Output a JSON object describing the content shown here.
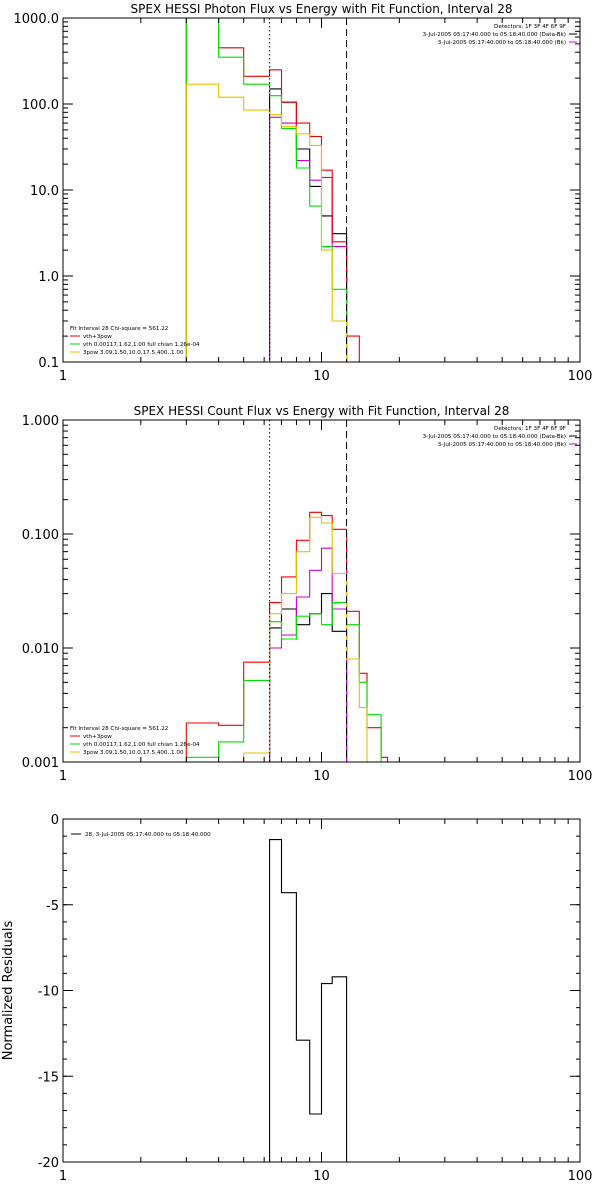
{
  "chart_data": [
    {
      "type": "line",
      "title": "SPEX HESSI Photon Flux vs Energy with Fit Function, Interval 28",
      "xlabel": "",
      "ylabel": "",
      "xscale": "log",
      "yscale": "log",
      "xlim": [
        1,
        100
      ],
      "ylim": [
        0.1,
        1000
      ],
      "xticks": [
        1,
        10,
        100
      ],
      "xtick_labels": [
        "1",
        "10",
        "100"
      ],
      "yticks": [
        0.1,
        1,
        10,
        100,
        1000
      ],
      "ytick_labels": [
        "0.1",
        "1.0",
        "10.0",
        "100.0",
        "1000.0"
      ],
      "legend_position": "top-right",
      "legend_lines": [
        {
          "text": "Detectors: 1F 3F 4F 6F 9F",
          "color": ""
        },
        {
          "text": "3-Jul-2005 05:17:40.000 to 05:18:40.000 (Data-Bk)",
          "color": "#000000"
        },
        {
          "text": "3-Jul-2005 05:17:40.000 to 05:18:40.000 (Bk)",
          "color": "#cc00cc"
        }
      ],
      "fit_info": [
        {
          "text": "Fit Interval 28   Chi-square = 561.22",
          "color": ""
        },
        {
          "text": "vth+3pow",
          "color": "#ee0000"
        },
        {
          "text": "vth 0.00117,1.62,1.00  full chian 1.26e-04",
          "color": "#00dd00"
        },
        {
          "text": "3pow 3.09,1.50,10.0,17.5,400.,1.00",
          "color": "#e6c000"
        }
      ],
      "markers": [
        6.3,
        12.5
      ],
      "series": [
        {
          "name": "3-Jul-2005 05:17:40.000 to 05:18:40.000 (Data-Bk)",
          "color": "#000000",
          "edges": [
            6.3,
            7,
            8,
            9,
            10,
            11,
            12.5
          ],
          "values": [
            150,
            105,
            30,
            11,
            5,
            3.1
          ]
        },
        {
          "name": "3-Jul-2005 05:17:40.000 to 05:18:40.000 (Bk)",
          "color": "#cc00cc",
          "edges": [
            6.3,
            7,
            8,
            9,
            10,
            11,
            12.5
          ],
          "values": [
            70,
            60,
            22,
            13,
            14,
            2.2
          ]
        },
        {
          "name": "vth+3pow",
          "color": "#ee0000",
          "edges": [
            3,
            4,
            5,
            6.3,
            7,
            8,
            9,
            10,
            11,
            12.5,
            14,
            15
          ],
          "values": [
            1000,
            450,
            210,
            250,
            105,
            60,
            42,
            17,
            2.5,
            0.2,
            0.1
          ]
        },
        {
          "name": "vth",
          "color": "#00dd00",
          "edges": [
            3,
            4,
            5,
            6.3,
            7,
            8,
            9,
            10,
            11,
            12.5
          ],
          "values": [
            1000,
            350,
            170,
            125,
            52,
            18,
            6.5,
            2.2,
            0.7
          ]
        },
        {
          "name": "3pow",
          "color": "#e6c000",
          "edges": [
            3,
            4,
            5,
            6.3,
            7,
            8,
            9,
            10,
            11,
            12.5
          ],
          "values": [
            170,
            120,
            85,
            75,
            55,
            45,
            33,
            2,
            0.3
          ]
        }
      ]
    },
    {
      "type": "line",
      "title": "SPEX HESSI Count Flux vs Energy with Fit Function, Interval 28",
      "xlabel": "",
      "ylabel": "",
      "xscale": "log",
      "yscale": "log",
      "xlim": [
        1,
        100
      ],
      "ylim": [
        0.001,
        1
      ],
      "xticks": [
        1,
        10,
        100
      ],
      "xtick_labels": [
        "1",
        "10",
        "100"
      ],
      "yticks": [
        0.001,
        0.01,
        0.1,
        1
      ],
      "ytick_labels": [
        "0.001",
        "0.010",
        "0.100",
        "1.000"
      ],
      "legend_position": "top-right",
      "legend_lines": [
        {
          "text": "Detectors: 1F 3F 4F 6F 9F",
          "color": ""
        },
        {
          "text": "3-Jul-2005 05:17:40.000 to 05:18:40.000 (Data-Bk)",
          "color": "#000000"
        },
        {
          "text": "3-Jul-2005 05:17:40.000 to 05:18:40.000 (Bk)",
          "color": "#cc00cc"
        }
      ],
      "fit_info": [
        {
          "text": "Fit Interval 28   Chi-square = 561.22",
          "color": ""
        },
        {
          "text": "vth+3pow",
          "color": "#ee0000"
        },
        {
          "text": "vth 0.00117,1.62,1.00  full chian 1.26e-04",
          "color": "#00dd00"
        },
        {
          "text": "3pow 3.09,1.50,10.0,17.5,400.,1.00",
          "color": "#e6c000"
        }
      ],
      "markers": [
        6.3,
        12.5
      ],
      "series": [
        {
          "name": "3-Jul-2005 05:17:40.000 to 05:18:40.000 (Data-Bk)",
          "color": "#000000",
          "edges": [
            6.3,
            7,
            8,
            9,
            10,
            11,
            12.5
          ],
          "values": [
            0.015,
            0.022,
            0.016,
            0.02,
            0.03,
            0.014
          ]
        },
        {
          "name": "3-Jul-2005 05:17:40.000 to 05:18:40.000 (Bk)",
          "color": "#cc00cc",
          "edges": [
            6.3,
            7,
            8,
            9,
            10,
            11,
            12.5
          ],
          "values": [
            0.01,
            0.013,
            0.028,
            0.048,
            0.075,
            0.022
          ]
        },
        {
          "name": "vth+3pow",
          "color": "#ee0000",
          "edges": [
            3,
            4,
            5,
            6.3,
            7,
            8,
            9,
            10,
            11,
            12.5,
            14,
            15,
            17,
            18
          ],
          "values": [
            0.0022,
            0.0021,
            0.0075,
            0.025,
            0.042,
            0.088,
            0.155,
            0.145,
            0.11,
            0.021,
            0.006,
            0.002,
            0.0011
          ]
        },
        {
          "name": "vth",
          "color": "#00dd00",
          "edges": [
            3,
            4,
            5,
            6.3,
            7,
            8,
            9,
            10,
            11,
            12.5,
            14,
            15,
            17
          ],
          "values": [
            0.0011,
            0.0015,
            0.0052,
            0.017,
            0.012,
            0.019,
            0.02,
            0.016,
            0.025,
            0.016,
            0.005,
            0.0026
          ]
        },
        {
          "name": "3pow",
          "color": "#e6c000",
          "edges": [
            3,
            4,
            5,
            6.3,
            7,
            8,
            9,
            10,
            11,
            12.5,
            14,
            15
          ],
          "values": [
            0.001,
            0.001,
            0.0012,
            0.02,
            0.03,
            0.07,
            0.14,
            0.125,
            0.045,
            0.008,
            0.003
          ]
        }
      ]
    },
    {
      "type": "line",
      "title": "",
      "xlabel": "",
      "ylabel": "Normalized Residuals",
      "xscale": "log",
      "yscale": "linear",
      "xlim": [
        1,
        100
      ],
      "ylim": [
        -20,
        0
      ],
      "xticks": [
        1,
        10,
        100
      ],
      "xtick_labels": [
        "1",
        "10",
        "100"
      ],
      "yticks": [
        -20,
        -15,
        -10,
        -5,
        0
      ],
      "ytick_labels": [
        "-20",
        "-15",
        "-10",
        "-5",
        "0"
      ],
      "legend_position": "top-left",
      "legend_lines": [
        {
          "text": "28, 3-Jul-2005 05:17:40.000 to 05:18:40.000",
          "color": "#000000"
        }
      ],
      "series": [
        {
          "name": "28, 3-Jul-2005 05:17:40.000 to 05:18:40.000",
          "color": "#000000",
          "edges": [
            6.3,
            7,
            8,
            9,
            10,
            11,
            12.5
          ],
          "values": [
            -1.2,
            -4.3,
            -12.9,
            -17.2,
            -9.6,
            -9.2
          ]
        }
      ]
    }
  ]
}
